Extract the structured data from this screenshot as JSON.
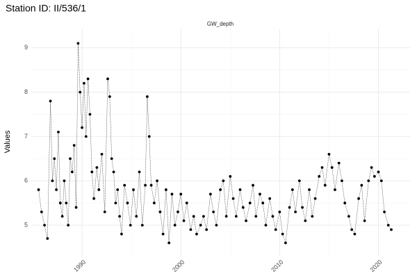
{
  "chart_data": {
    "type": "scatter-line",
    "title": "Station ID: II/536/1",
    "facet_label": "GW_depth",
    "y_label": "Values",
    "x": [
      1985.6,
      1985.9,
      1986.2,
      1986.5,
      1986.8,
      1987.0,
      1987.2,
      1987.4,
      1987.6,
      1987.8,
      1988.0,
      1988.2,
      1988.4,
      1988.6,
      1988.8,
      1989.0,
      1989.2,
      1989.4,
      1989.6,
      1989.8,
      1990.0,
      1990.2,
      1990.4,
      1990.6,
      1990.8,
      1991.0,
      1991.2,
      1991.5,
      1991.7,
      1992.0,
      1992.3,
      1992.6,
      1992.8,
      1993.0,
      1993.2,
      1993.4,
      1993.6,
      1993.8,
      1994.0,
      1994.3,
      1994.6,
      1994.9,
      1995.2,
      1995.5,
      1995.8,
      1996.1,
      1996.4,
      1996.6,
      1996.8,
      1997.0,
      1997.3,
      1997.6,
      1997.9,
      1998.2,
      1998.5,
      1998.8,
      1999.1,
      1999.4,
      1999.7,
      2000.0,
      2000.3,
      2000.6,
      2001.0,
      2001.3,
      2001.6,
      2002.0,
      2002.3,
      2002.6,
      2003.0,
      2003.3,
      2003.6,
      2004.0,
      2004.3,
      2004.6,
      2005.0,
      2005.3,
      2005.6,
      2006.0,
      2006.3,
      2006.6,
      2007.0,
      2007.3,
      2007.6,
      2008.0,
      2008.3,
      2008.6,
      2009.0,
      2009.3,
      2009.6,
      2010.0,
      2010.3,
      2010.6,
      2011.0,
      2011.3,
      2011.6,
      2012.0,
      2012.3,
      2012.6,
      2013.0,
      2013.3,
      2013.6,
      2014.0,
      2014.3,
      2014.6,
      2015.0,
      2015.3,
      2015.6,
      2016.0,
      2016.3,
      2016.6,
      2017.0,
      2017.3,
      2017.6,
      2018.0,
      2018.3,
      2018.6,
      2019.0,
      2019.3,
      2019.6,
      2020.0,
      2020.3,
      2020.6,
      2021.0,
      2021.3
    ],
    "values": [
      5.8,
      5.3,
      5.0,
      4.7,
      7.8,
      6.0,
      6.5,
      5.8,
      7.1,
      5.5,
      5.2,
      6.0,
      5.5,
      5.0,
      6.5,
      6.2,
      6.8,
      5.4,
      9.1,
      8.0,
      7.2,
      8.2,
      7.0,
      8.3,
      7.5,
      6.2,
      5.6,
      6.3,
      5.8,
      6.6,
      5.3,
      8.3,
      7.9,
      6.5,
      6.2,
      5.5,
      5.8,
      5.2,
      4.8,
      5.9,
      5.5,
      5.0,
      5.8,
      5.2,
      6.2,
      5.0,
      5.9,
      7.9,
      7.0,
      5.9,
      5.5,
      6.0,
      5.3,
      4.8,
      5.8,
      4.6,
      5.7,
      5.0,
      5.3,
      5.7,
      5.1,
      5.5,
      4.9,
      5.2,
      4.8,
      5.0,
      5.2,
      4.9,
      5.7,
      5.3,
      5.0,
      5.8,
      6.0,
      5.2,
      6.1,
      5.6,
      5.2,
      5.8,
      5.4,
      5.1,
      5.5,
      5.9,
      5.2,
      5.7,
      5.5,
      5.0,
      5.6,
      5.2,
      4.9,
      5.3,
      4.8,
      4.6,
      5.4,
      5.8,
      5.3,
      6.0,
      5.4,
      5.1,
      5.8,
      5.2,
      5.6,
      6.1,
      6.3,
      5.9,
      6.6,
      6.3,
      5.8,
      6.4,
      6.0,
      5.5,
      5.2,
      4.9,
      4.8,
      5.6,
      5.9,
      5.1,
      6.0,
      6.3,
      6.1,
      6.2,
      6.0,
      5.3,
      5.0,
      4.9
    ],
    "color": "#000000",
    "xlim": [
      1984.86,
      2023.2
    ],
    "xticks": [
      1990,
      2000,
      2010,
      2020
    ],
    "ylim": [
      4.31,
      9.42
    ],
    "yticks": [
      5,
      6,
      7,
      8,
      9
    ],
    "grid": true
  }
}
